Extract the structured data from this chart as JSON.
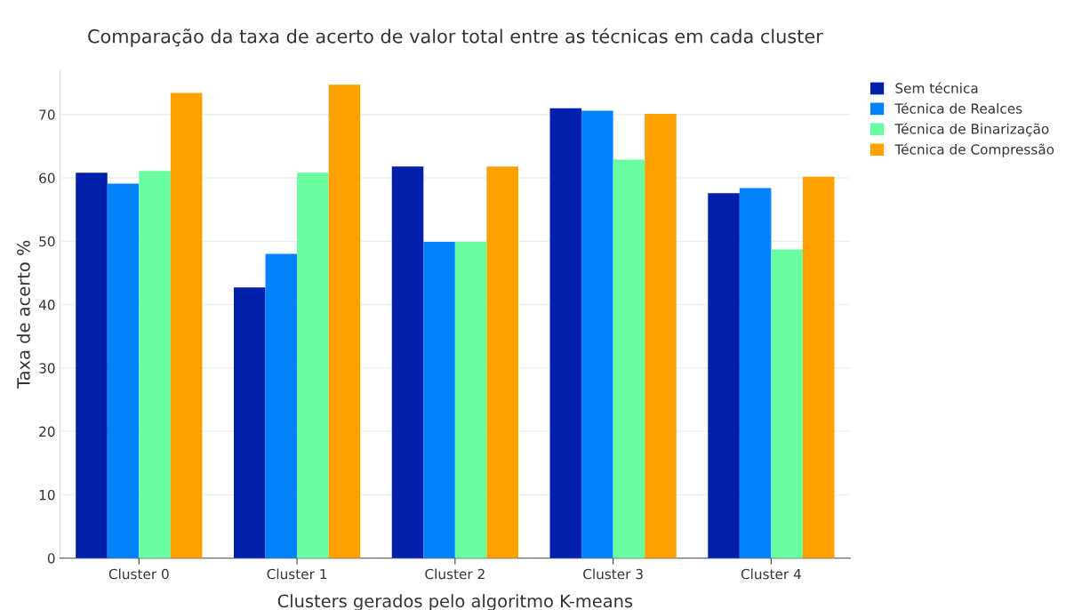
{
  "chart_data": {
    "type": "bar",
    "title": "Comparação da taxa de acerto de valor total entre as técnicas em cada cluster",
    "xlabel": "Clusters gerados pelo algoritmo K-means",
    "ylabel": "Taxa de acerto %",
    "categories": [
      "Cluster 0",
      "Cluster 1",
      "Cluster 2",
      "Cluster 3",
      "Cluster 4"
    ],
    "series": [
      {
        "name": "Sem técnica",
        "color": "#0220aa",
        "values": [
          60.8,
          42.7,
          61.8,
          71.0,
          57.6
        ]
      },
      {
        "name": "Técnica de Realces",
        "color": "#0382fc",
        "values": [
          59.1,
          48.0,
          49.9,
          70.6,
          58.4
        ]
      },
      {
        "name": "Técnica de Binarização",
        "color": "#6afca0",
        "values": [
          61.1,
          60.8,
          49.9,
          62.9,
          48.7
        ]
      },
      {
        "name": "Técnica de Compressão",
        "color": "#fea000",
        "values": [
          73.4,
          74.7,
          61.8,
          70.1,
          60.2
        ]
      }
    ],
    "ylim": [
      0,
      77
    ],
    "yticks": [
      0,
      10,
      20,
      30,
      40,
      50,
      60,
      70
    ],
    "grid": "y",
    "legend": "top right"
  }
}
